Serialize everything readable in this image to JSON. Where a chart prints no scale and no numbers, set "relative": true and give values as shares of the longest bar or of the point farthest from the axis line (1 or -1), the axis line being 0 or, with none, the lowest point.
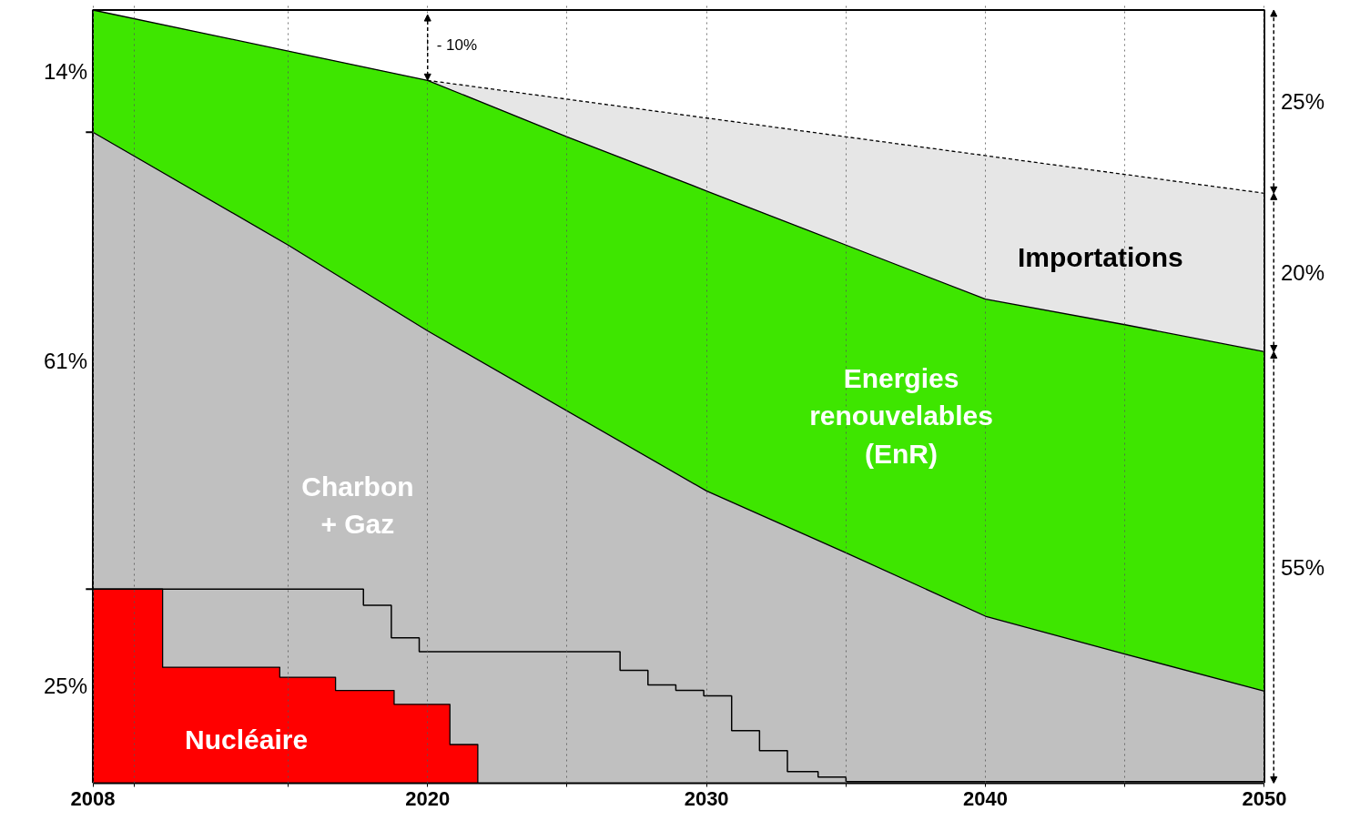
{
  "chart_data": {
    "type": "area",
    "relative": true,
    "xlim": [
      2008,
      2050
    ],
    "xticks": [
      2008,
      {
        "value": 2009.5,
        "label": null
      },
      {
        "value": 2015,
        "label": null
      },
      2020,
      {
        "value": 2025,
        "label": null
      },
      2030,
      {
        "value": 2035,
        "label": null
      },
      2040,
      {
        "value": 2045,
        "label": null
      },
      2050
    ],
    "grid": "x",
    "series": [
      {
        "name": "Importations",
        "color": "#e6e6e6",
        "line_style": "dashed",
        "x": [
          2020,
          2050
        ],
        "values": [
          0.909,
          0.763
        ]
      },
      {
        "name": "Energies\nrenouvelables\n(EnR)",
        "color": "#3ee600",
        "x": [
          2008,
          2015,
          2020,
          2025,
          2030,
          2035,
          2040,
          2045,
          2050
        ],
        "values": [
          1.0,
          0.947,
          0.909,
          0.836,
          0.766,
          0.696,
          0.626,
          0.593,
          0.558
        ]
      },
      {
        "name": "Charbon\n+ Gaz",
        "color": "#c0c0c0",
        "x": [
          2008,
          2015,
          2020,
          2030,
          2035,
          2040,
          2045,
          2050
        ],
        "values": [
          0.842,
          0.696,
          0.585,
          0.378,
          0.298,
          0.216,
          0.167,
          0.119
        ]
      },
      {
        "name": "Nucléaire",
        "color": "#ff0000",
        "x": [
          2008,
          2010.5,
          2010.5,
          2014.7,
          2014.7,
          2016.7,
          2016.7,
          2018.8,
          2018.8,
          2020.8,
          2020.8,
          2021.8,
          2021.8
        ],
        "values": [
          0.251,
          0.251,
          0.15,
          0.15,
          0.137,
          0.137,
          0.12,
          0.12,
          0.102,
          0.102,
          0.05,
          0.05,
          0
        ]
      },
      {
        "type": "step",
        "color": "#000000",
        "x": [
          2008,
          2017.7,
          2018.7,
          2019.7,
          2026.9,
          2027.9,
          2028.9,
          2029.9,
          2030.9,
          2031.9,
          2032.9,
          2034.0,
          2035.0,
          2050
        ],
        "values": [
          0.251,
          0.23,
          0.188,
          0.17,
          0.146,
          0.127,
          0.12,
          0.113,
          0.068,
          0.042,
          0.015,
          0.008,
          0.002,
          0.002
        ]
      }
    ],
    "annotations": [
      "14%",
      "61%",
      "25%",
      "25%",
      "20%",
      "55%",
      "- 10%"
    ]
  }
}
